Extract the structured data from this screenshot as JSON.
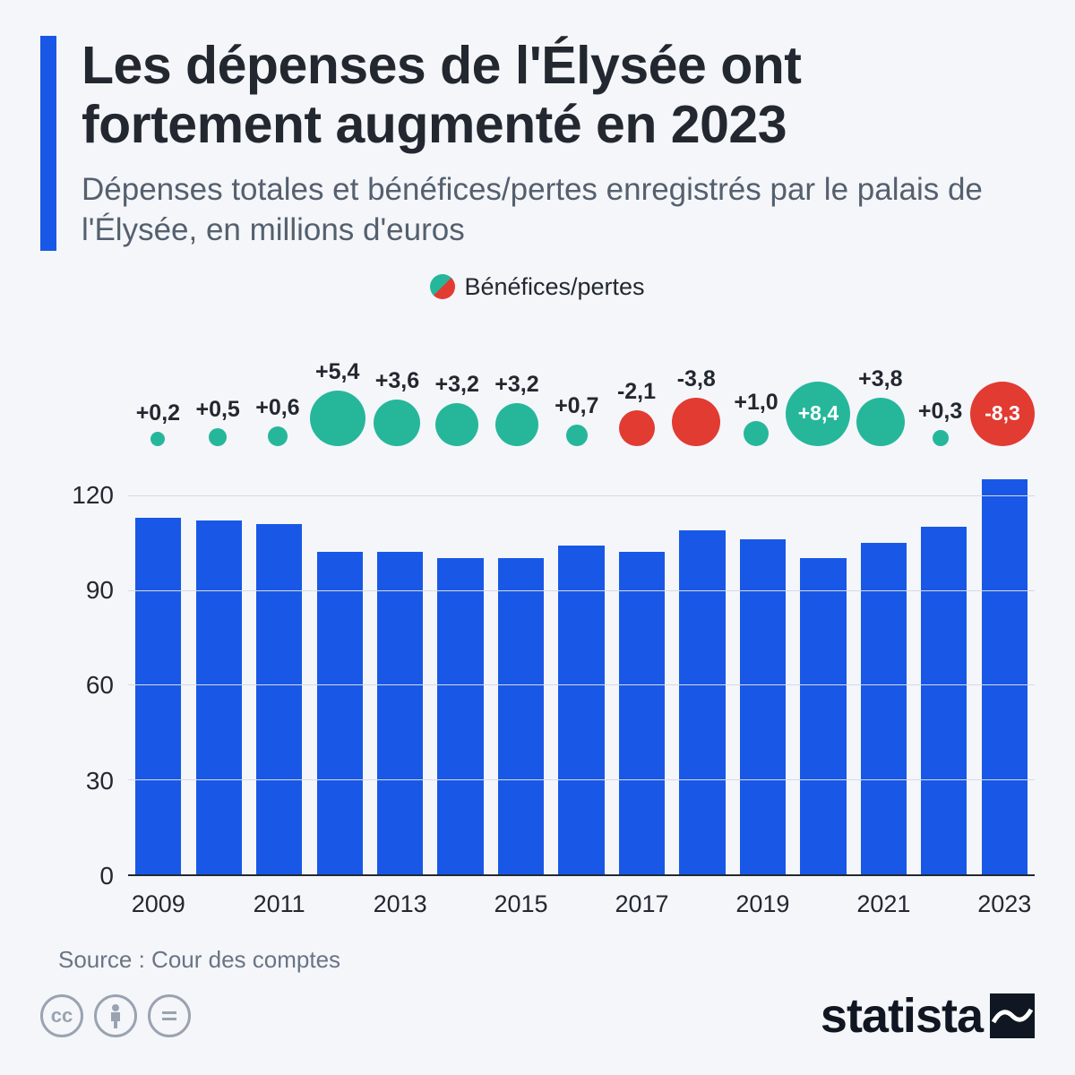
{
  "header": {
    "title": "Les dépenses de l'Élysée ont fortement augmenté en 2023",
    "subtitle": "Dépenses totales et bénéfices/pertes enregistrés par le palais de l'Élysée, en millions d'euros",
    "accent_color": "#1958e6"
  },
  "legend": {
    "label": "Bénéfices/pertes"
  },
  "chart": {
    "type": "bar",
    "bar_color": "#1958e6",
    "positive_color": "#26b79b",
    "negative_color": "#e13b32",
    "background_color": "#f4f6fa",
    "grid_color": "#d5dbe4",
    "ylim": [
      0,
      130
    ],
    "y_ticks": [
      0,
      30,
      60,
      90,
      120
    ],
    "years": [
      2009,
      2010,
      2011,
      2012,
      2013,
      2014,
      2015,
      2016,
      2017,
      2018,
      2019,
      2020,
      2021,
      2022,
      2023
    ],
    "x_labels": [
      "2009",
      "",
      "2011",
      "",
      "2013",
      "",
      "2015",
      "",
      "2017",
      "",
      "2019",
      "",
      "2021",
      "",
      "2023"
    ],
    "bars": [
      113,
      112,
      111,
      102,
      102,
      100,
      100,
      104,
      102,
      109,
      106,
      100,
      105,
      110,
      125
    ],
    "bubbles": [
      {
        "label": "+0,2",
        "value": 0.2,
        "size": 16,
        "label_inside": false
      },
      {
        "label": "+0,5",
        "value": 0.5,
        "size": 20,
        "label_inside": false
      },
      {
        "label": "+0,6",
        "value": 0.6,
        "size": 22,
        "label_inside": false
      },
      {
        "label": "+5,4",
        "value": 5.4,
        "size": 62,
        "label_inside": false
      },
      {
        "label": "+3,6",
        "value": 3.6,
        "size": 52,
        "label_inside": false
      },
      {
        "label": "+3,2",
        "value": 3.2,
        "size": 48,
        "label_inside": false
      },
      {
        "label": "+3,2",
        "value": 3.2,
        "size": 48,
        "label_inside": false
      },
      {
        "label": "+0,7",
        "value": 0.7,
        "size": 24,
        "label_inside": false
      },
      {
        "label": "-2,1",
        "value": -2.1,
        "size": 40,
        "label_inside": false
      },
      {
        "label": "-3,8",
        "value": -3.8,
        "size": 54,
        "label_inside": false
      },
      {
        "label": "+1,0",
        "value": 1.0,
        "size": 28,
        "label_inside": false
      },
      {
        "label": "+8,4",
        "value": 8.4,
        "size": 72,
        "label_inside": true
      },
      {
        "label": "+3,8",
        "value": 3.8,
        "size": 54,
        "label_inside": false
      },
      {
        "label": "+0,3",
        "value": 0.3,
        "size": 18,
        "label_inside": false
      },
      {
        "label": "-8,3",
        "value": -8.3,
        "size": 72,
        "label_inside": true
      }
    ]
  },
  "source": "Source : Cour des comptes",
  "brand": "statista"
}
